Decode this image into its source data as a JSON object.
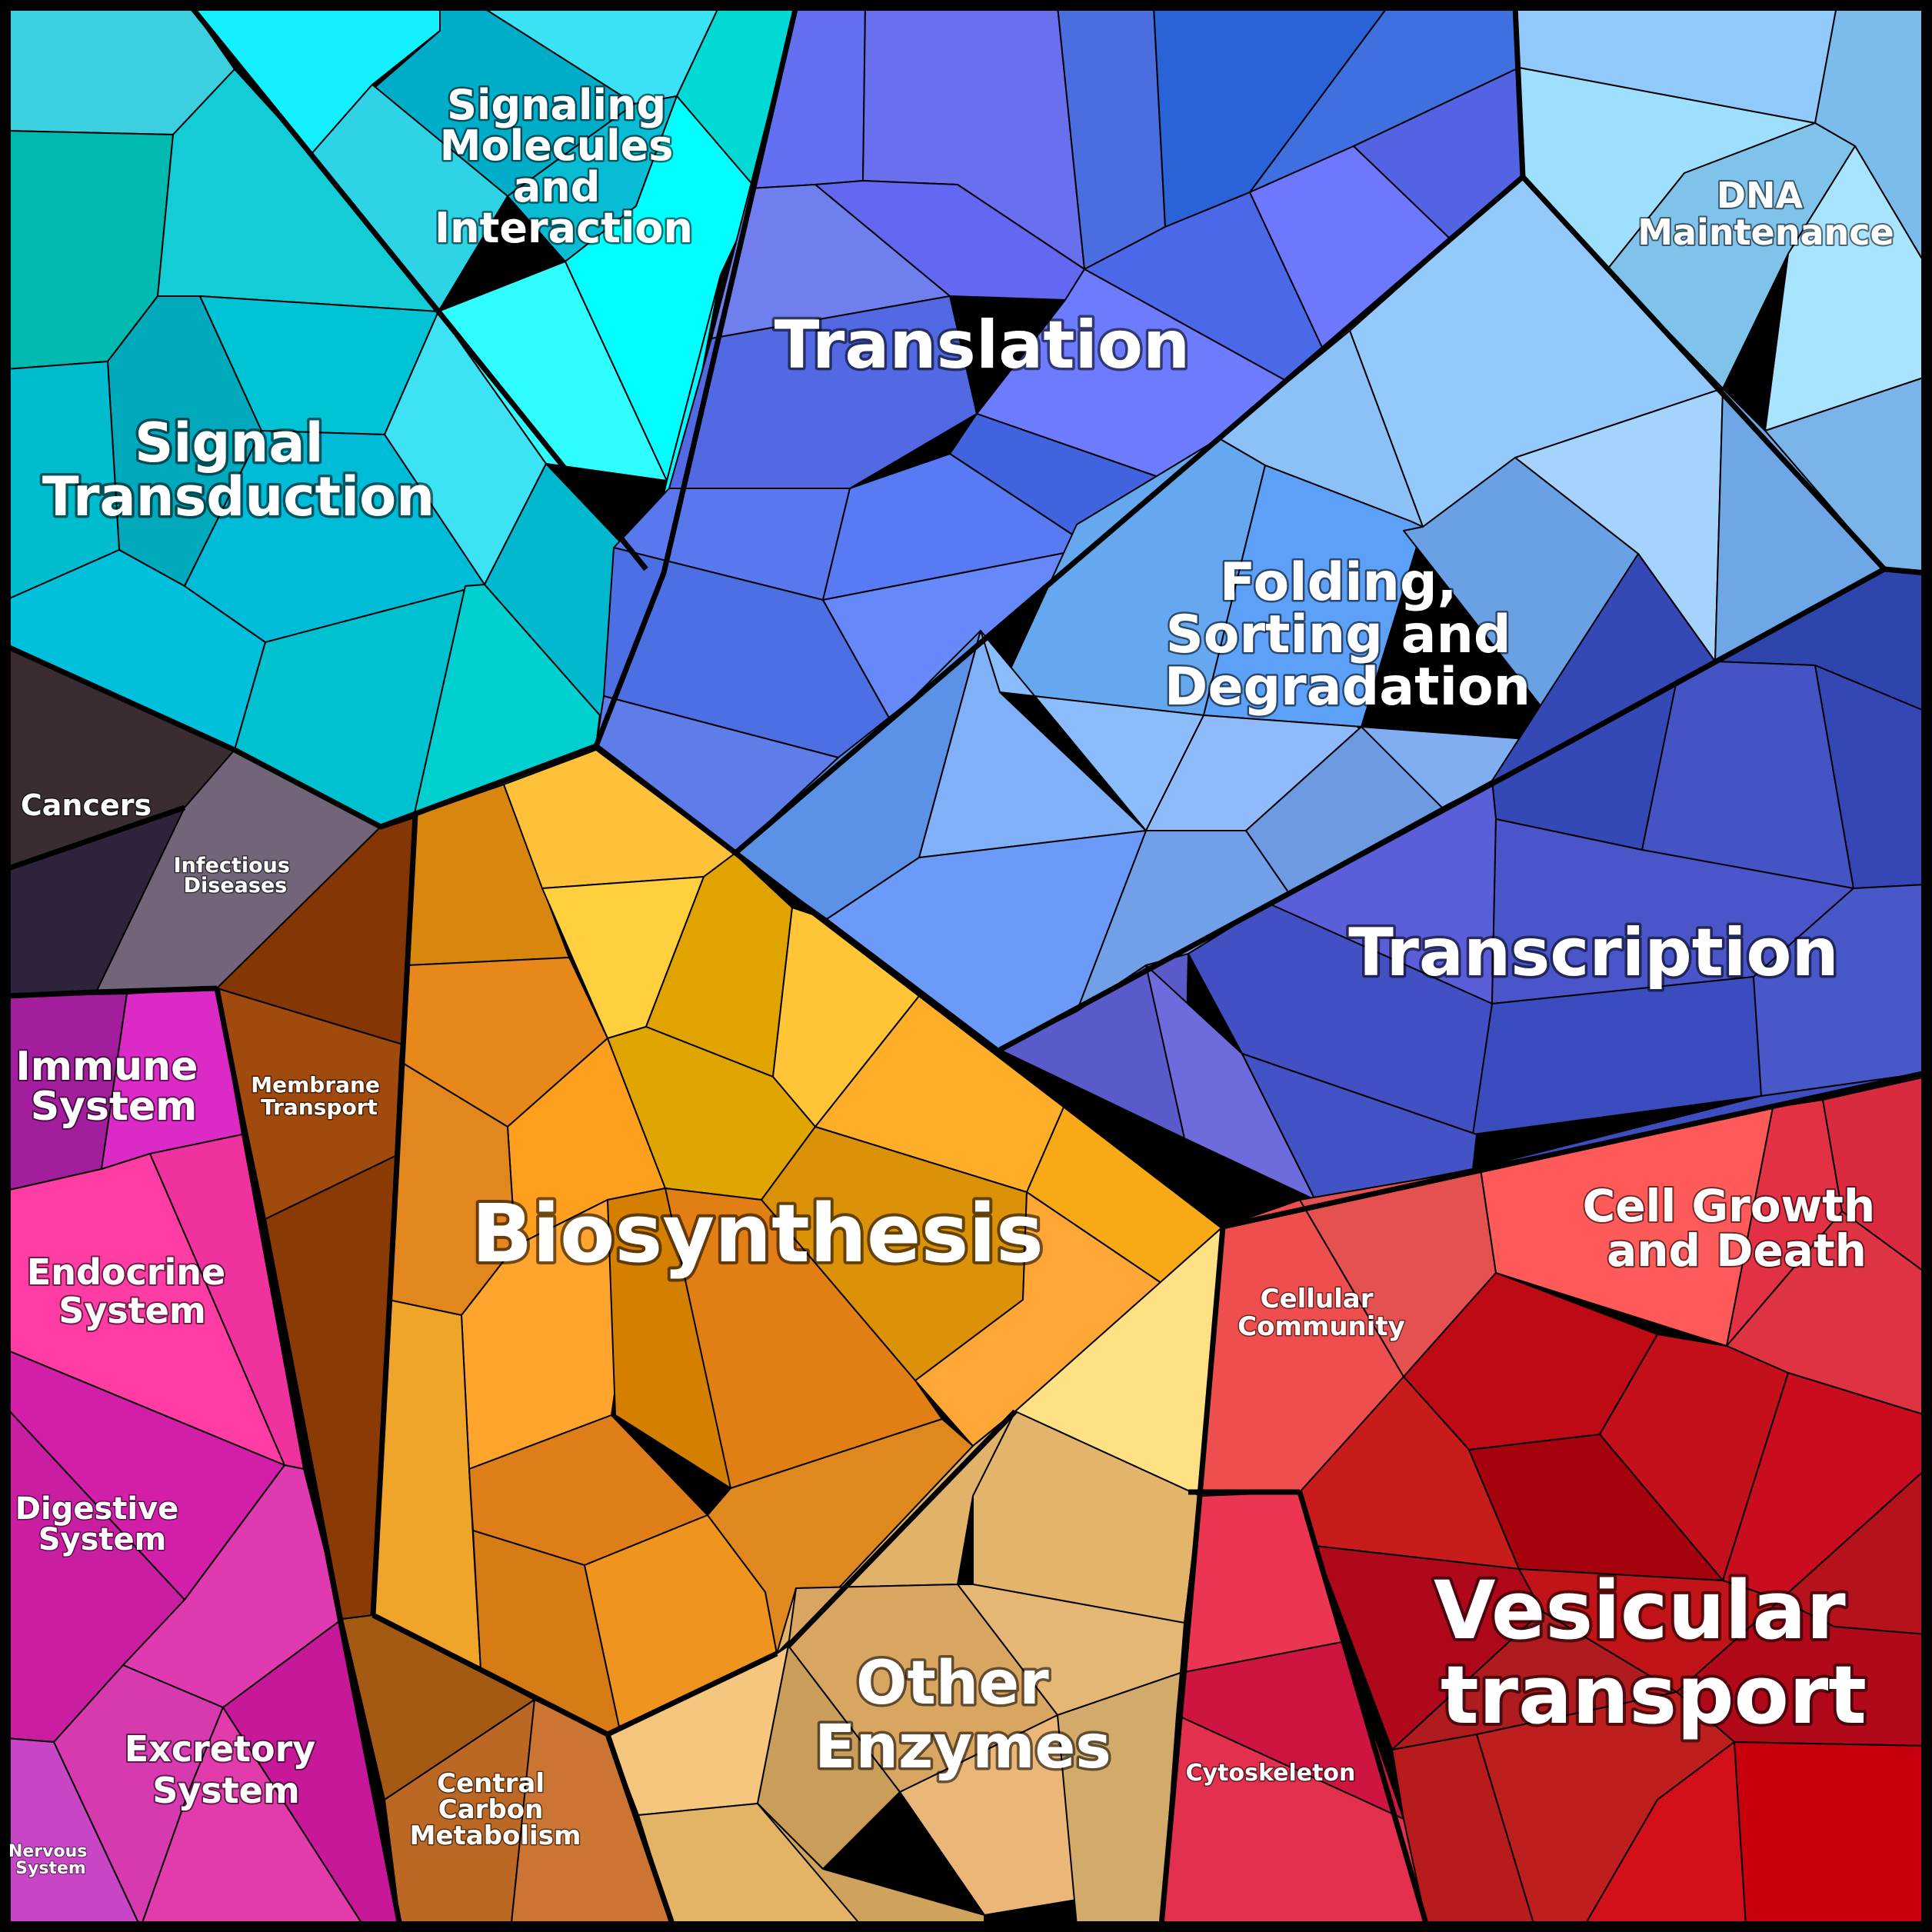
{
  "diagram": {
    "type": "voronoi-treemap",
    "categories": [
      {
        "key": "signaling_molecules",
        "label_lines": [
          "Signaling",
          "Molecules",
          "and",
          "Interaction"
        ],
        "color": "#25D8E6"
      },
      {
        "key": "signal_transduction",
        "label_lines": [
          "Signal",
          "Transduction"
        ],
        "color": "#10C3D3"
      },
      {
        "key": "translation",
        "label_lines": [
          "Translation"
        ],
        "color": "#5B6FE8"
      },
      {
        "key": "dna_maintenance",
        "label_lines": [
          "DNA",
          "Maintenance"
        ],
        "color": "#8FCFF5"
      },
      {
        "key": "folding",
        "label_lines": [
          "Folding,",
          "Sorting and",
          "Degradation"
        ],
        "color": "#78A8F0"
      },
      {
        "key": "transcription",
        "label_lines": [
          "Transcription"
        ],
        "color": "#3F4FC0"
      },
      {
        "key": "cancers",
        "label_lines": [
          "Cancers"
        ],
        "color": "#35262E"
      },
      {
        "key": "infectious",
        "label_lines": [
          "Infectious",
          "Diseases"
        ],
        "color": "#756878"
      },
      {
        "key": "immune",
        "label_lines": [
          "Immune",
          "System"
        ],
        "color": "#C624BE"
      },
      {
        "key": "endocrine",
        "label_lines": [
          "Endocrine",
          "System"
        ],
        "color": "#FF3DA8"
      },
      {
        "key": "digestive",
        "label_lines": [
          "Digestive",
          "System"
        ],
        "color": "#D320A8"
      },
      {
        "key": "excretory",
        "label_lines": [
          "Excretory",
          "System"
        ],
        "color": "#E53AAE"
      },
      {
        "key": "nervous",
        "label_lines": [
          "Nervous",
          "System"
        ],
        "color": "#C845C6"
      },
      {
        "key": "membrane_transport",
        "label_lines": [
          "Membrane",
          "Transport"
        ],
        "color": "#93460A"
      },
      {
        "key": "central_carbon",
        "label_lines": [
          "Central",
          "Carbon",
          "Metabolism"
        ],
        "color": "#C06A28"
      },
      {
        "key": "biosynthesis",
        "label_lines": [
          "Biosynthesis"
        ],
        "color": "#F0951A"
      },
      {
        "key": "other_enzymes",
        "label_lines": [
          "Other",
          "Enzymes"
        ],
        "color": "#E2B068"
      },
      {
        "key": "cellular_community",
        "label_lines": [
          "Cellular",
          "Community"
        ],
        "color": "#EF4D4D"
      },
      {
        "key": "cell_growth",
        "label_lines": [
          "Cell Growth",
          "and Death"
        ],
        "color": "#EE3E4E"
      },
      {
        "key": "cytoskeleton",
        "label_lines": [
          "Cytoskeleton"
        ],
        "color": "#E8324E"
      },
      {
        "key": "vesicular",
        "label_lines": [
          "Vesicular",
          "transport"
        ],
        "color": "#C2121C"
      }
    ]
  }
}
